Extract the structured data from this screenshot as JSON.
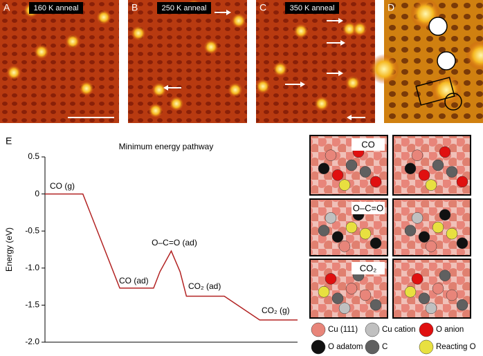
{
  "panels": [
    {
      "label": "A",
      "caption": "160 K anneal"
    },
    {
      "label": "B",
      "caption": "250 K anneal"
    },
    {
      "label": "C",
      "caption": "350 K anneal"
    },
    {
      "label": "D"
    }
  ],
  "chart_data": {
    "type": "line",
    "panel_label": "E",
    "title": "Minimum energy pathway",
    "y_label": "Energy (eV)",
    "x": [
      0,
      15,
      29.6,
      43,
      45.5,
      50,
      53.5,
      56,
      71,
      85,
      100
    ],
    "xlim": [
      0,
      100
    ],
    "series": [
      {
        "color": "#b22222",
        "values": [
          0,
          0,
          -1.27,
          -1.27,
          -1.05,
          -0.77,
          -1.05,
          -1.38,
          -1.38,
          -1.7,
          -1.7
        ]
      }
    ],
    "ylim": [
      -2,
      0.5
    ],
    "yticks": [
      0.5,
      0,
      -0.5,
      {
        "value": -1,
        "label": "-1.0"
      },
      -1.5,
      {
        "value": -2,
        "label": "-2.0"
      }
    ],
    "annotations": [
      "CO (g)",
      "CO (ad)",
      "O–C=O (ad)",
      "CO₂ (ad)",
      "CO₂ (g)"
    ]
  },
  "structures": {
    "labels": [
      "CO",
      "O–C=O",
      "CO₂"
    ]
  },
  "legend": [
    {
      "name": "Cu (111)",
      "color": "#e8857a"
    },
    {
      "name": "Cu cation",
      "color": "#c0c0c0"
    },
    {
      "name": "O anion",
      "color": "#e01010"
    },
    {
      "name": "O adatom",
      "color": "#111111"
    },
    {
      "name": "C",
      "color": "#606060"
    },
    {
      "name": "Reacting O",
      "color": "#e8e040"
    }
  ]
}
